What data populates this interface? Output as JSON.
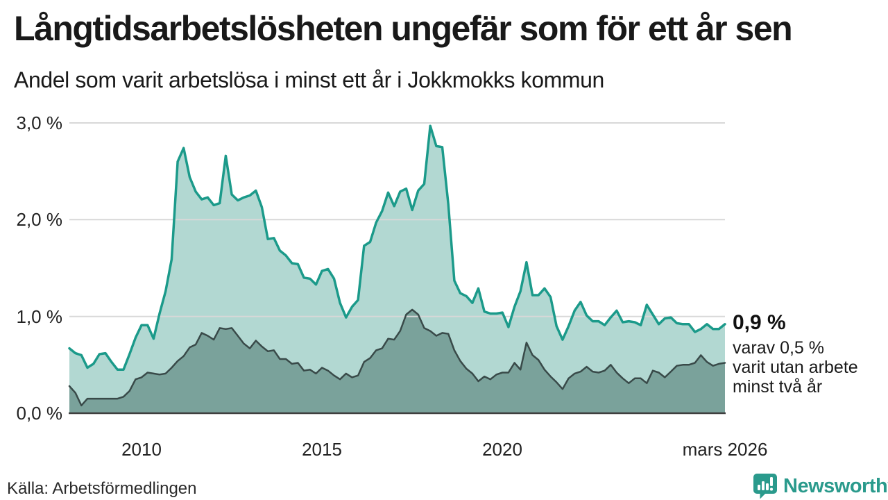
{
  "chart_data": {
    "type": "area",
    "title": "Långtidsarbetslösheten ungefär som för ett år sen",
    "subtitle": "Andel som varit arbetslösa i minst ett år i Jokkmokks kommun",
    "grid": true,
    "legend_position": "none",
    "y_axis": {
      "min": 0,
      "max": 3,
      "unit": "%",
      "ticks": [
        {
          "value": 0,
          "label": "0,0 %"
        },
        {
          "value": 1,
          "label": "1,0 %"
        },
        {
          "value": 2,
          "label": "2,0 %"
        },
        {
          "value": 3,
          "label": "3,0 %"
        }
      ]
    },
    "x_axis": {
      "start_year_decimal": 2008.0,
      "step_months": 2,
      "ticks": [
        {
          "year": 2010,
          "label": "2010"
        },
        {
          "year": 2015,
          "label": "2015"
        },
        {
          "year": 2020,
          "label": "2020"
        },
        {
          "year": 2026.17,
          "label": "mars 2026"
        }
      ]
    },
    "series": [
      {
        "name": "Andel arbetslösa minst ett år",
        "line_color": "#1b9a8a",
        "fill_color": "#b2d8d2",
        "line_width": 3.5,
        "end_value": "0,9 %",
        "values": [
          0.67,
          0.62,
          0.6,
          0.47,
          0.51,
          0.61,
          0.62,
          0.53,
          0.45,
          0.45,
          0.61,
          0.78,
          0.91,
          0.91,
          0.77,
          1.03,
          1.26,
          1.59,
          2.6,
          2.74,
          2.44,
          2.29,
          2.21,
          2.23,
          2.15,
          2.17,
          2.66,
          2.26,
          2.2,
          2.23,
          2.25,
          2.3,
          2.13,
          1.8,
          1.81,
          1.68,
          1.63,
          1.55,
          1.54,
          1.4,
          1.39,
          1.33,
          1.47,
          1.49,
          1.39,
          1.14,
          0.99,
          1.1,
          1.17,
          1.73,
          1.77,
          1.97,
          2.09,
          2.28,
          2.14,
          2.29,
          2.32,
          2.1,
          2.3,
          2.37,
          2.97,
          2.76,
          2.75,
          2.16,
          1.37,
          1.24,
          1.21,
          1.14,
          1.29,
          1.05,
          1.03,
          1.03,
          1.04,
          0.89,
          1.1,
          1.26,
          1.56,
          1.22,
          1.22,
          1.29,
          1.2,
          0.9,
          0.76,
          0.9,
          1.06,
          1.15,
          1.01,
          0.95,
          0.95,
          0.91,
          0.99,
          1.06,
          0.94,
          0.95,
          0.94,
          0.91,
          1.12,
          1.02,
          0.92,
          0.98,
          0.99,
          0.93,
          0.92,
          0.92,
          0.84,
          0.87,
          0.92,
          0.87,
          0.87,
          0.92
        ]
      },
      {
        "name": "Andel utan arbete minst två år",
        "line_color": "#394a49",
        "fill_color": "#7aa29b",
        "line_width": 2.5,
        "end_value": "0,5 %",
        "values": [
          0.28,
          0.21,
          0.08,
          0.15,
          0.15,
          0.15,
          0.15,
          0.15,
          0.15,
          0.17,
          0.23,
          0.35,
          0.37,
          0.42,
          0.41,
          0.4,
          0.41,
          0.47,
          0.54,
          0.59,
          0.68,
          0.71,
          0.83,
          0.8,
          0.76,
          0.88,
          0.87,
          0.88,
          0.8,
          0.72,
          0.67,
          0.75,
          0.69,
          0.64,
          0.65,
          0.56,
          0.56,
          0.51,
          0.52,
          0.44,
          0.45,
          0.41,
          0.47,
          0.44,
          0.39,
          0.35,
          0.41,
          0.37,
          0.39,
          0.53,
          0.57,
          0.65,
          0.67,
          0.77,
          0.76,
          0.85,
          1.02,
          1.07,
          1.02,
          0.88,
          0.85,
          0.8,
          0.83,
          0.82,
          0.65,
          0.54,
          0.46,
          0.41,
          0.33,
          0.38,
          0.35,
          0.4,
          0.42,
          0.42,
          0.52,
          0.45,
          0.73,
          0.6,
          0.55,
          0.45,
          0.38,
          0.32,
          0.25,
          0.36,
          0.41,
          0.43,
          0.48,
          0.43,
          0.42,
          0.44,
          0.5,
          0.42,
          0.36,
          0.31,
          0.36,
          0.36,
          0.31,
          0.44,
          0.42,
          0.37,
          0.43,
          0.49,
          0.5,
          0.5,
          0.52,
          0.6,
          0.53,
          0.49,
          0.51,
          0.52
        ]
      }
    ],
    "annotations": {
      "value": "0,9 %",
      "lines": [
        "varav 0,5 %",
        "varit utan arbete",
        "minst två år"
      ]
    },
    "colors": {
      "gridline": "#d8d8d8",
      "axis_line": "#3f3f3f",
      "text": "#1a1a1a"
    },
    "source": "Källa: Arbetsförmedlingen"
  },
  "footer": {
    "brand": "Newsworthy",
    "brand_color": "#2a9a8c",
    "logo_icon": "bar-chart-speech-bubble"
  }
}
